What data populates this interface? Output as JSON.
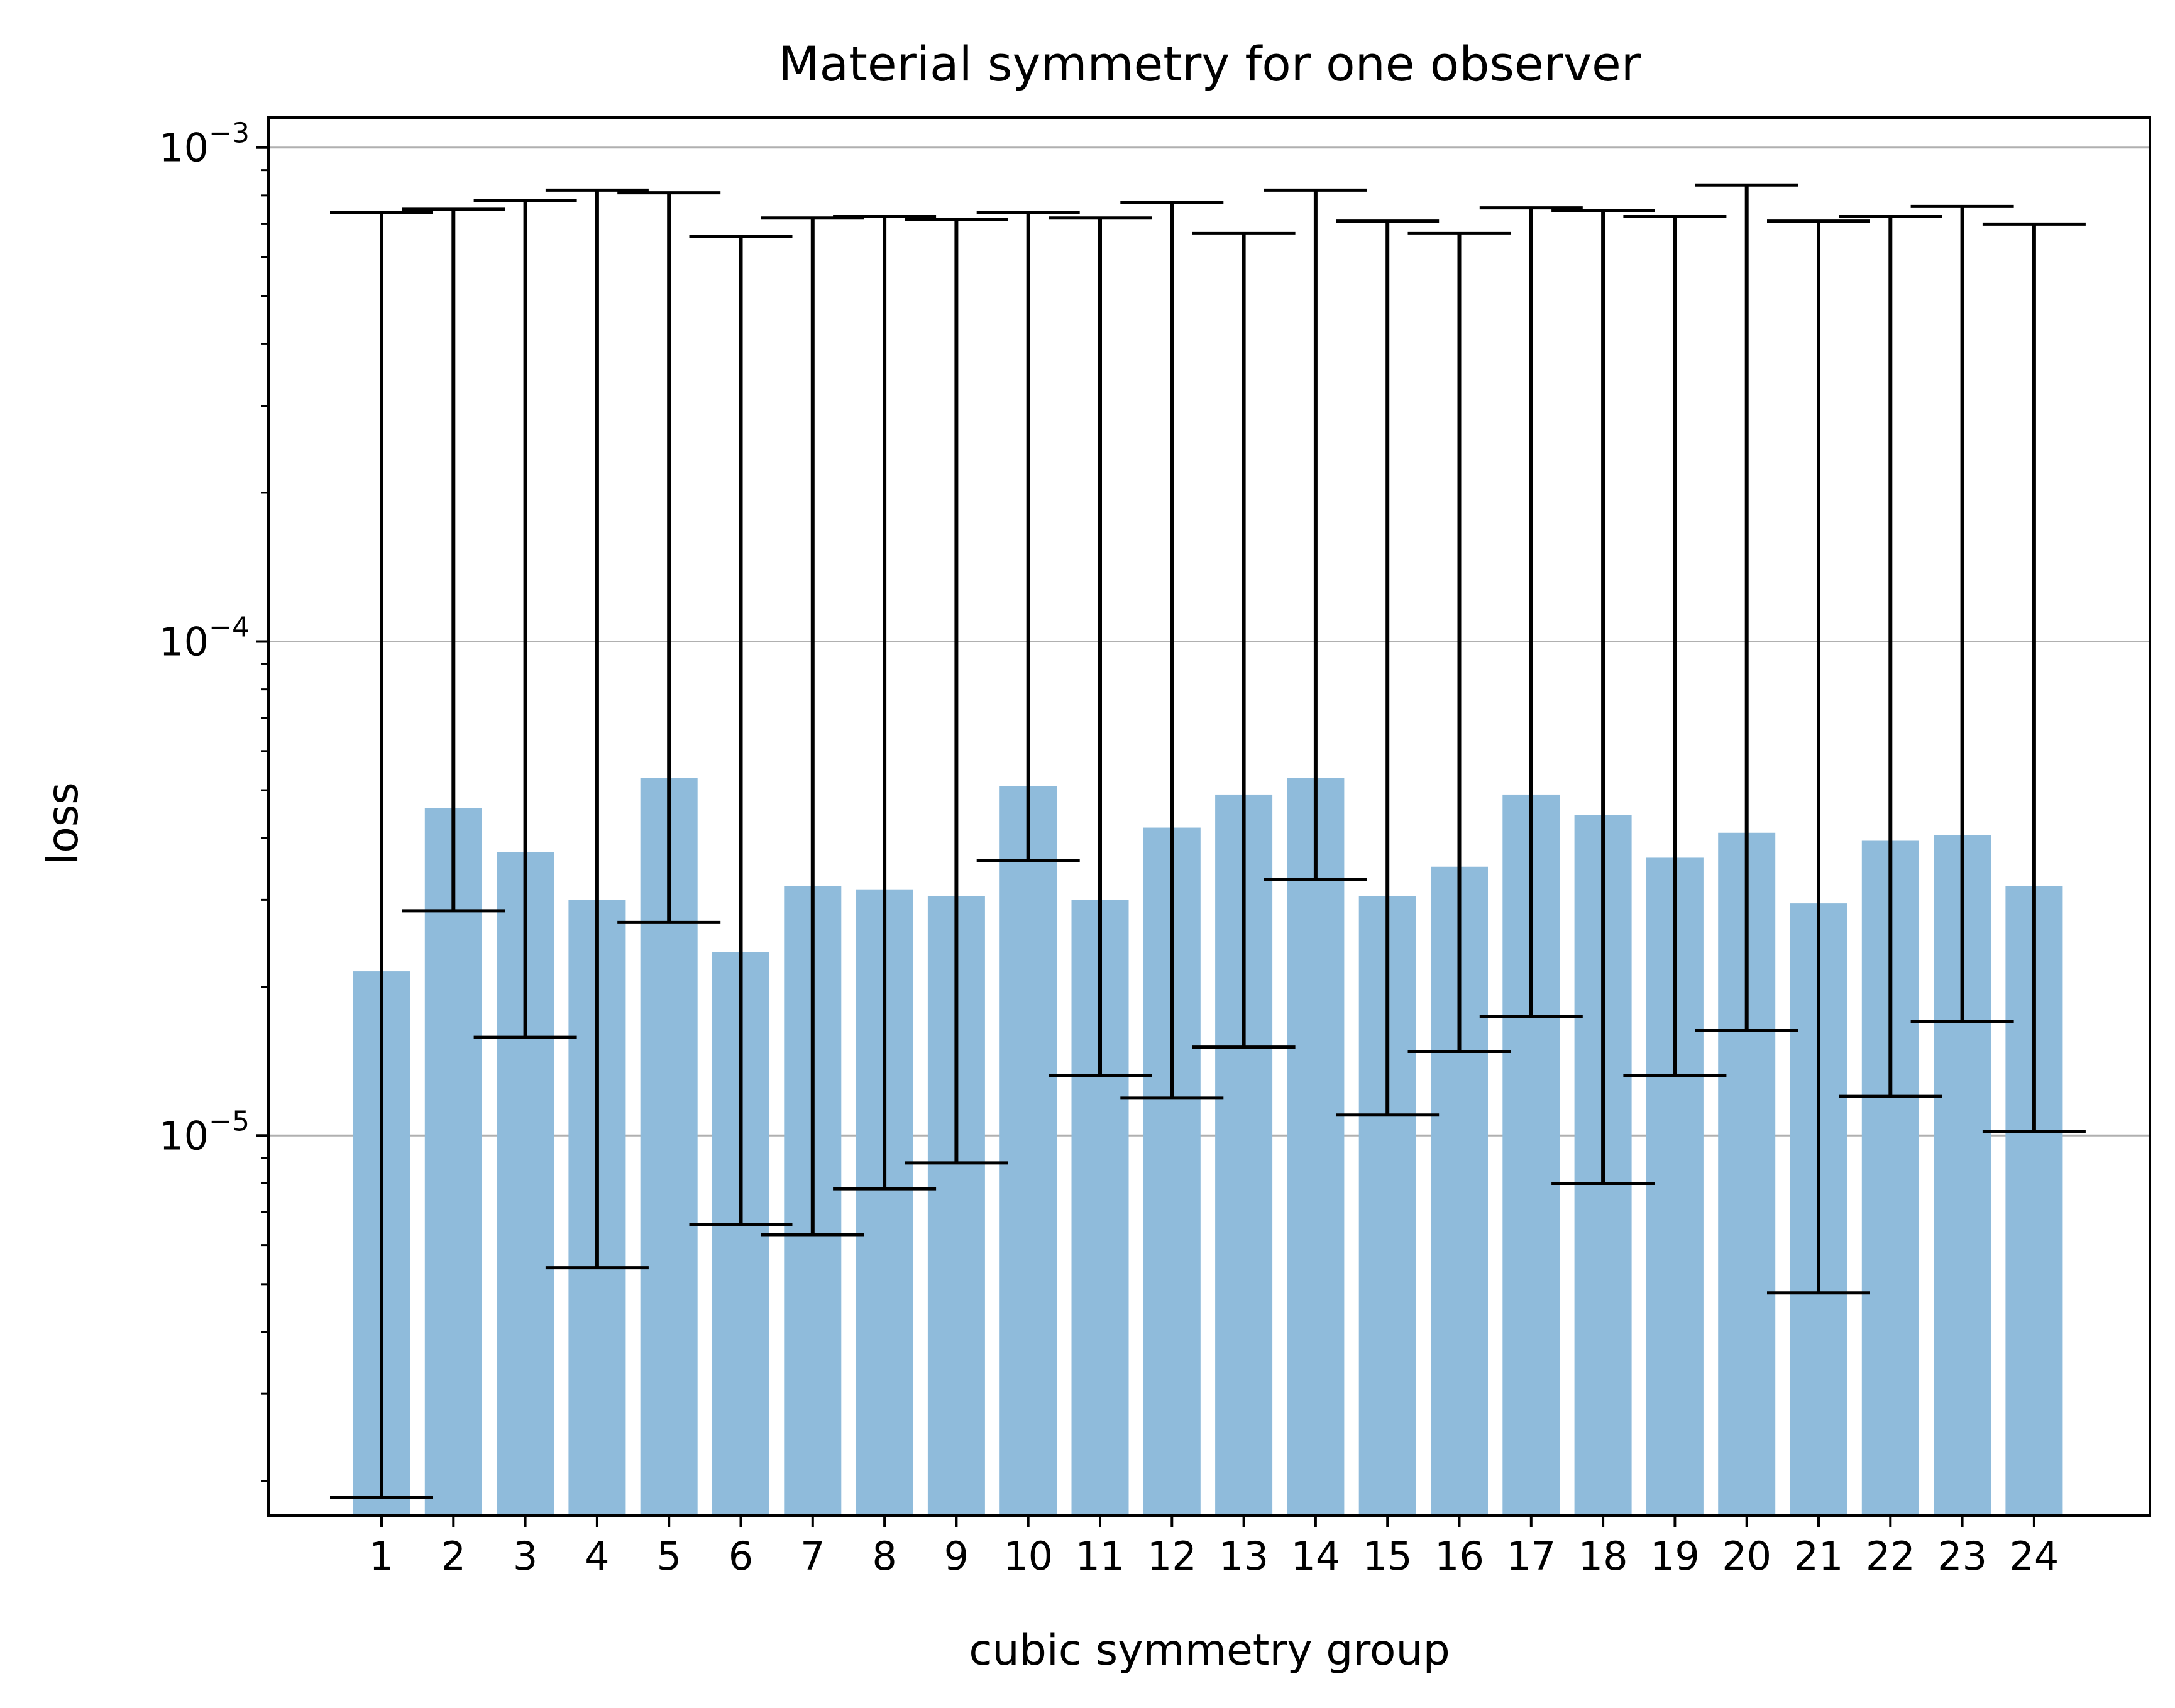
{
  "chart_data": {
    "type": "bar",
    "title": "Material symmetry for one observer",
    "xlabel": "cubic symmetry group",
    "ylabel": "loss",
    "yscale": "log",
    "ylim": [
      1.7e-06,
      0.00115
    ],
    "grid": "y-major",
    "bar_color": "#8fbbdb",
    "error_color": "#000000",
    "yticks": [
      {
        "base": "10",
        "exp": "−5",
        "value": 1e-05
      },
      {
        "base": "10",
        "exp": "−4",
        "value": 0.0001
      },
      {
        "base": "10",
        "exp": "−3",
        "value": 0.001
      }
    ],
    "categories": [
      "1",
      "2",
      "3",
      "4",
      "5",
      "6",
      "7",
      "8",
      "9",
      "10",
      "11",
      "12",
      "13",
      "14",
      "15",
      "16",
      "17",
      "18",
      "19",
      "20",
      "21",
      "22",
      "23",
      "24"
    ],
    "values": [
      2.15e-05,
      4.6e-05,
      3.75e-05,
      3e-05,
      5.3e-05,
      2.35e-05,
      3.2e-05,
      3.15e-05,
      3.05e-05,
      5.1e-05,
      3e-05,
      4.2e-05,
      4.9e-05,
      5.3e-05,
      3.05e-05,
      3.5e-05,
      4.9e-05,
      4.45e-05,
      3.65e-05,
      4.1e-05,
      2.95e-05,
      3.95e-05,
      4.05e-05,
      3.2e-05
    ],
    "err_low": [
      1.85e-06,
      2.85e-05,
      1.58e-05,
      5.4e-06,
      2.7e-05,
      6.6e-06,
      6.3e-06,
      7.8e-06,
      8.8e-06,
      3.6e-05,
      1.32e-05,
      1.19e-05,
      1.51e-05,
      3.3e-05,
      1.1e-05,
      1.48e-05,
      1.74e-05,
      8e-06,
      1.32e-05,
      1.63e-05,
      4.8e-06,
      1.2e-05,
      1.7e-05,
      1.02e-05
    ],
    "err_high": [
      0.00074,
      0.00075,
      0.00078,
      0.00082,
      0.00081,
      0.00066,
      0.00072,
      0.000725,
      0.000715,
      0.00074,
      0.00072,
      0.000775,
      0.00067,
      0.00082,
      0.00071,
      0.00067,
      0.000755,
      0.000745,
      0.000725,
      0.00084,
      0.00071,
      0.000725,
      0.00076,
      0.0007
    ]
  }
}
